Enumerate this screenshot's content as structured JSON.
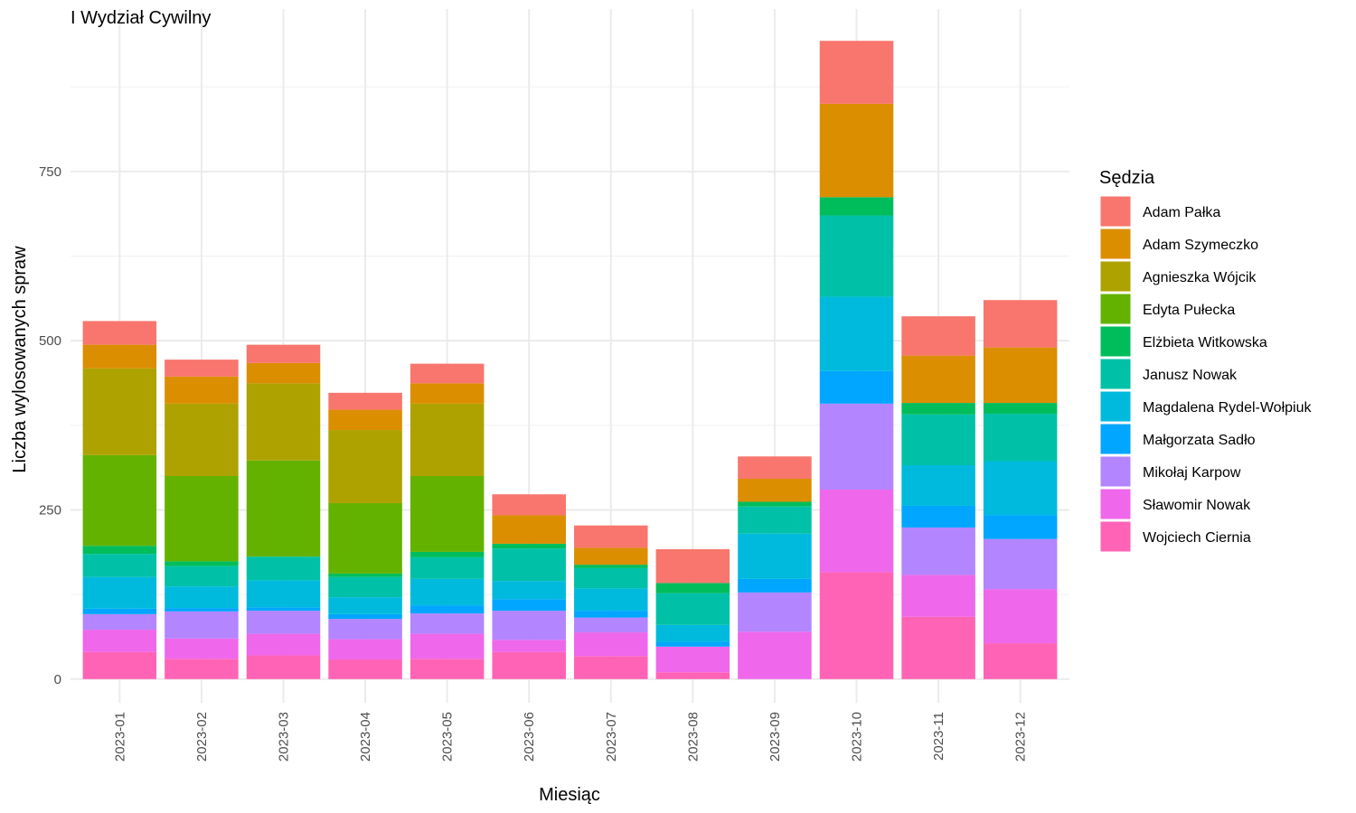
{
  "chart_data": {
    "type": "bar",
    "stacked": true,
    "title": "I Wydział Cywilny",
    "xlabel": "Miesiąc",
    "ylabel": "Liczba wylosowanych spraw",
    "legend_title": "Sędzia",
    "legend_position": "right",
    "grid": true,
    "ylim": [
      -35,
      990
    ],
    "y_ticks": [
      0,
      250,
      500,
      750
    ],
    "categories": [
      "2023-01",
      "2023-02",
      "2023-03",
      "2023-04",
      "2023-05",
      "2023-06",
      "2023-07",
      "2023-08",
      "2023-09",
      "2023-10",
      "2023-11",
      "2023-12"
    ],
    "series": [
      {
        "name": "Adam Pałka",
        "color": "#F8766D",
        "values": [
          35,
          25,
          27,
          25,
          29,
          31,
          33,
          50,
          33,
          93,
          58,
          70
        ]
      },
      {
        "name": "Adam Szymeczko",
        "color": "#DB8E00",
        "values": [
          35,
          40,
          30,
          30,
          30,
          42,
          25,
          0,
          34,
          138,
          70,
          82
        ]
      },
      {
        "name": "Agnieszka Wójcik",
        "color": "#AEA200",
        "values": [
          128,
          107,
          114,
          108,
          107,
          0,
          0,
          0,
          0,
          0,
          0,
          0
        ]
      },
      {
        "name": "Edyta Pułecka",
        "color": "#64B200",
        "values": [
          134,
          126,
          142,
          104,
          112,
          0,
          0,
          0,
          0,
          0,
          0,
          0
        ]
      },
      {
        "name": "Elżbieta Witkowska",
        "color": "#00BD5C",
        "values": [
          12,
          7,
          0,
          5,
          8,
          7,
          5,
          15,
          7,
          27,
          17,
          16
        ]
      },
      {
        "name": "Janusz Nowak",
        "color": "#00C1A7",
        "values": [
          34,
          30,
          35,
          30,
          32,
          48,
          30,
          47,
          40,
          120,
          75,
          70
        ]
      },
      {
        "name": "Magdalena Rydel-Wołpiuk",
        "color": "#00BADE",
        "values": [
          47,
          32,
          40,
          25,
          39,
          27,
          33,
          25,
          67,
          110,
          60,
          80
        ]
      },
      {
        "name": "Małgorzata Sadło",
        "color": "#00A6FF",
        "values": [
          8,
          5,
          5,
          7,
          12,
          17,
          10,
          7,
          20,
          48,
          32,
          35
        ]
      },
      {
        "name": "Mikołaj Karpow",
        "color": "#B385FF",
        "values": [
          23,
          40,
          34,
          30,
          30,
          43,
          22,
          0,
          58,
          127,
          70,
          74
        ]
      },
      {
        "name": "Sławomir Nowak",
        "color": "#EF67EB",
        "values": [
          33,
          30,
          32,
          30,
          37,
          18,
          35,
          38,
          70,
          122,
          62,
          80
        ]
      },
      {
        "name": "Wojciech Ciernia",
        "color": "#FF63B6",
        "values": [
          40,
          30,
          35,
          29,
          30,
          40,
          34,
          10,
          0,
          158,
          92,
          53
        ]
      }
    ]
  }
}
